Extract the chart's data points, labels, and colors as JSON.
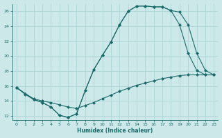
{
  "xlabel": "Humidex (Indice chaleur)",
  "bg_color": "#cce8e8",
  "line_color": "#1a6b6b",
  "grid_color": "#b0d8d8",
  "xlim": [
    -0.5,
    23.5
  ],
  "ylim": [
    11.5,
    27.0
  ],
  "xticks": [
    0,
    1,
    2,
    3,
    4,
    5,
    6,
    7,
    8,
    9,
    10,
    11,
    12,
    13,
    14,
    15,
    16,
    17,
    18,
    19,
    20,
    21,
    22,
    23
  ],
  "yticks": [
    12,
    14,
    16,
    18,
    20,
    22,
    24,
    26
  ],
  "line1_x": [
    0,
    1,
    2,
    3,
    4,
    5,
    6,
    7,
    8,
    9,
    10,
    11,
    12,
    13,
    14,
    15,
    16,
    17,
    18,
    19,
    20,
    21,
    22,
    23
  ],
  "line1_y": [
    15.8,
    14.9,
    14.2,
    13.8,
    13.2,
    12.1,
    11.8,
    12.3,
    15.4,
    18.2,
    20.1,
    21.9,
    24.2,
    26.0,
    26.7,
    26.7,
    26.6,
    26.6,
    26.1,
    25.9,
    24.2,
    20.4,
    18.1,
    17.5
  ],
  "line2_x": [
    0,
    2,
    3,
    4,
    5,
    6,
    7,
    8,
    9,
    10,
    11,
    12,
    13,
    14,
    15,
    16,
    17,
    18,
    19,
    20,
    21,
    22,
    23
  ],
  "line2_y": [
    15.8,
    14.2,
    13.8,
    13.2,
    12.1,
    11.8,
    12.3,
    15.4,
    18.2,
    20.1,
    21.9,
    24.2,
    26.0,
    26.7,
    26.7,
    26.6,
    26.6,
    26.1,
    24.2,
    20.4,
    18.1,
    17.5,
    17.5
  ],
  "line3_x": [
    0,
    1,
    2,
    3,
    4,
    5,
    6,
    7,
    8,
    9,
    10,
    11,
    12,
    13,
    14,
    15,
    16,
    17,
    18,
    19,
    20,
    21,
    22,
    23
  ],
  "line3_y": [
    15.8,
    15.0,
    14.3,
    14.0,
    13.8,
    13.5,
    13.2,
    13.0,
    13.4,
    13.8,
    14.3,
    14.8,
    15.3,
    15.7,
    16.1,
    16.4,
    16.7,
    17.0,
    17.2,
    17.4,
    17.5,
    17.5,
    17.5,
    17.5
  ]
}
